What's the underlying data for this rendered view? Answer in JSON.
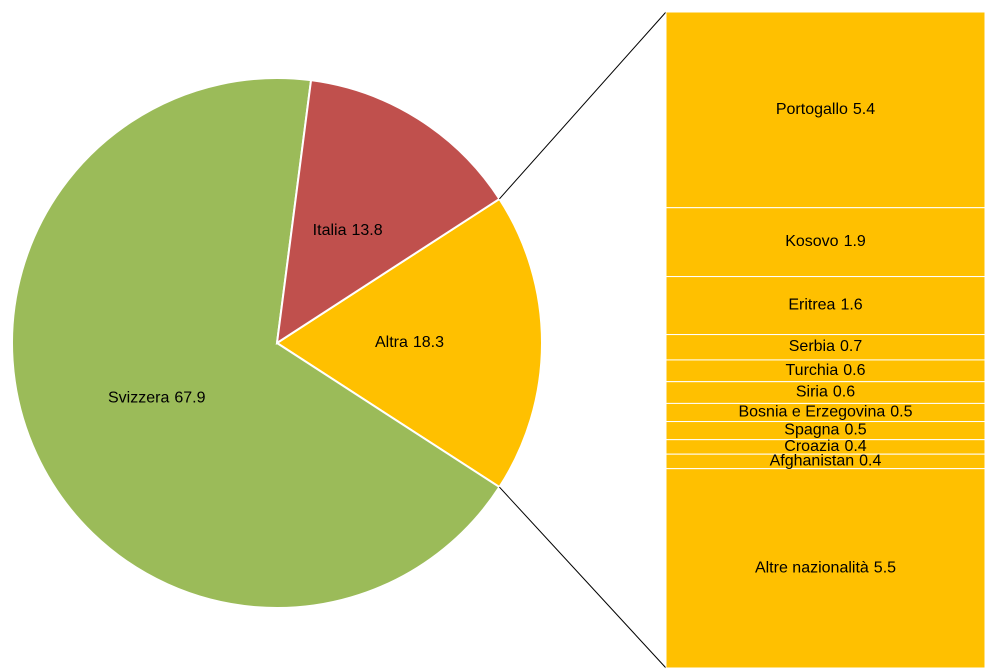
{
  "chart_data": {
    "type": "pie",
    "categories": [
      "Svizzera",
      "Italia",
      "Altra"
    ],
    "values": [
      67.9,
      13.8,
      18.3
    ],
    "colors": [
      "#9bbb59",
      "#c0504d",
      "#ffc000"
    ],
    "breakdown": {
      "categories": [
        "Portogallo",
        "Kosovo",
        "Eritrea",
        "Serbia",
        "Turchia",
        "Siria",
        "Bosnia e Erzegovina",
        "Spagna",
        "Croazia",
        "Afghanistan",
        "Altre nazionalità"
      ],
      "values": [
        5.4,
        1.9,
        1.6,
        0.7,
        0.6,
        0.6,
        0.5,
        0.5,
        0.4,
        0.4,
        5.5
      ],
      "color": "#ffc000"
    }
  }
}
